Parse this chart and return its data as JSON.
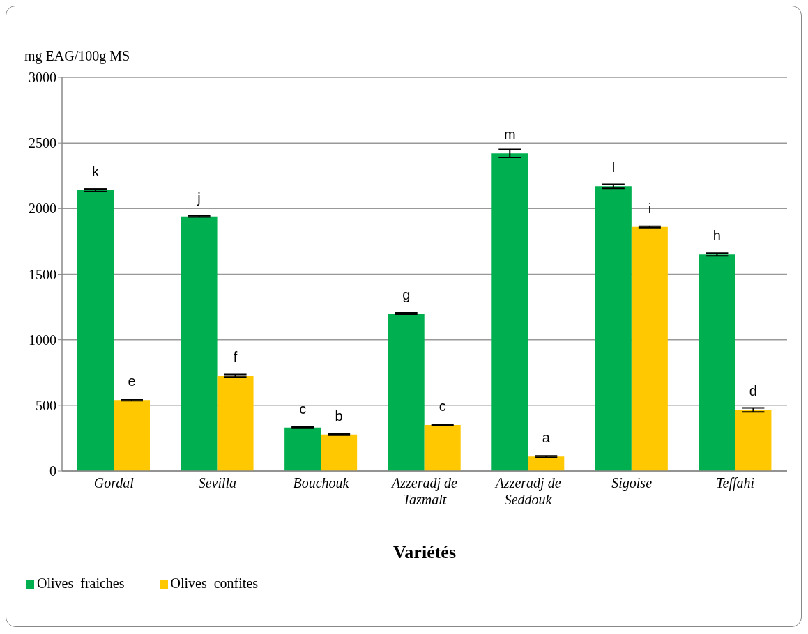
{
  "chart_data": {
    "type": "bar",
    "xlabel": "Variétés",
    "ylabel": "mg EAG/100g MS",
    "categories": [
      "Gordal",
      "Sevilla",
      "Bouchouk",
      "Azzeradj de Tazmalt",
      "Azzeradj de Seddouk",
      "Sigoise",
      "Teffahi"
    ],
    "series": [
      {
        "name": "Olives  fraiches",
        "color": "#00b050",
        "values": [
          2140,
          1940,
          330,
          1200,
          2420,
          2170,
          1650
        ],
        "errors": [
          10,
          5,
          5,
          5,
          30,
          15,
          10
        ],
        "value_labels": [
          "k",
          "j",
          "c",
          "g",
          "m",
          "l",
          "h"
        ]
      },
      {
        "name": "Olives  confites",
        "color": "#ffc800",
        "values": [
          540,
          725,
          277,
          350,
          110,
          1860,
          465
        ],
        "errors": [
          5,
          10,
          5,
          5,
          5,
          5,
          15
        ],
        "value_labels": [
          "e",
          "f",
          "b",
          "c",
          "a",
          "i",
          "d"
        ]
      }
    ],
    "ylim": [
      0,
      3000
    ],
    "yticks": [
      0,
      500,
      1000,
      1500,
      2000,
      2500,
      3000
    ],
    "grid": "y",
    "legend": "bottom left"
  }
}
